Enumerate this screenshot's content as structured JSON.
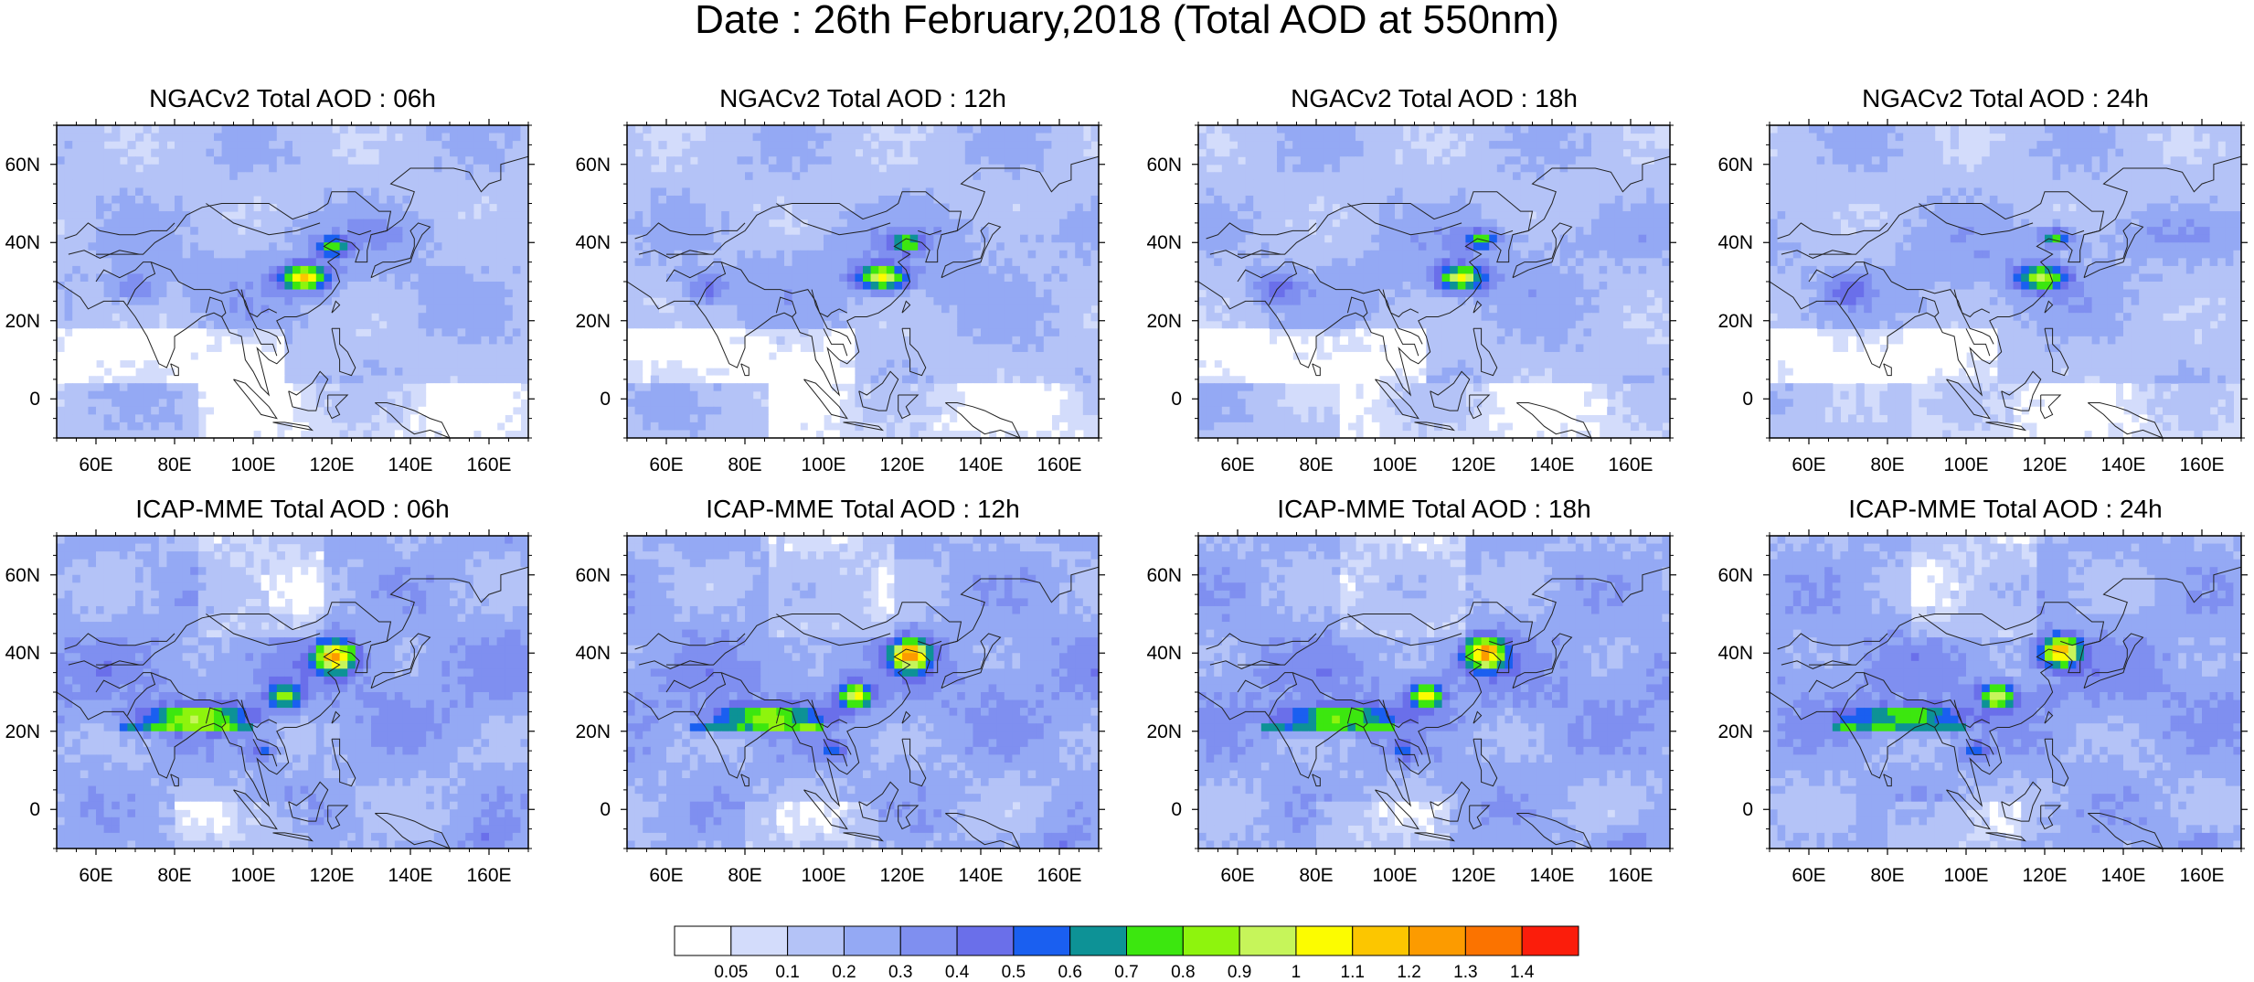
{
  "title": "Date : 26th February,2018 (Total AOD at 550nm)",
  "panels": [
    {
      "title": "NGACv2 Total AOD : 06h"
    },
    {
      "title": "NGACv2 Total AOD : 12h"
    },
    {
      "title": "NGACv2 Total AOD : 18h"
    },
    {
      "title": "NGACv2 Total AOD : 24h"
    },
    {
      "title": "ICAP-MME Total AOD : 06h"
    },
    {
      "title": "ICAP-MME Total AOD : 12h"
    },
    {
      "title": "ICAP-MME Total AOD : 18h"
    },
    {
      "title": "ICAP-MME Total AOD : 24h"
    }
  ],
  "axes": {
    "lon_ticks": [
      "60E",
      "80E",
      "100E",
      "120E",
      "140E",
      "160E"
    ],
    "lon_values": [
      60,
      80,
      100,
      120,
      140,
      160
    ],
    "lon_range": [
      50,
      170
    ],
    "lat_ticks": [
      "60N",
      "40N",
      "20N",
      "0"
    ],
    "lat_values": [
      60,
      40,
      20,
      0
    ],
    "lat_range": [
      -10,
      70
    ]
  },
  "colorbar": {
    "labels": [
      "0.05",
      "0.1",
      "0.2",
      "0.3",
      "0.4",
      "0.5",
      "0.6",
      "0.7",
      "0.8",
      "0.9",
      "1",
      "1.1",
      "1.2",
      "1.3",
      "1.4"
    ],
    "colors": [
      "#ffffff",
      "#d3dcfb",
      "#b4c3f7",
      "#94a9f4",
      "#7f8ff0",
      "#6a6fea",
      "#1a5ff0",
      "#0d9296",
      "#3ce70f",
      "#8ef40d",
      "#c6f55a",
      "#fcfc00",
      "#fcc600",
      "#fc9b00",
      "#fb7300",
      "#fb1d0b"
    ]
  }
}
